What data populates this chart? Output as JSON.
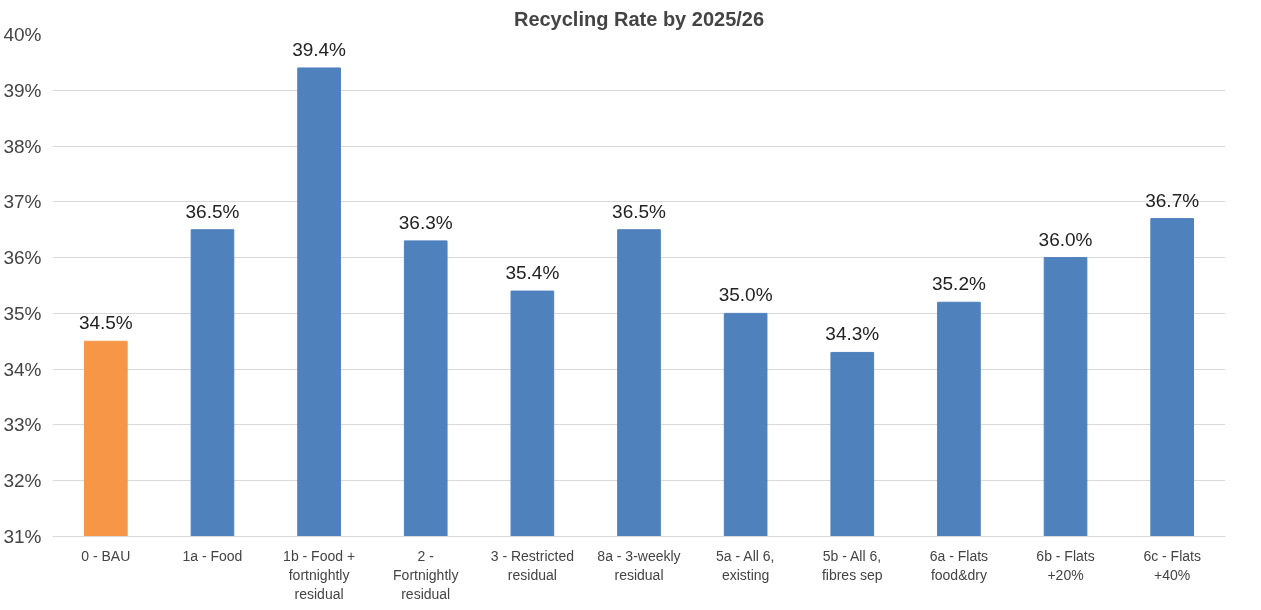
{
  "chart_data": {
    "type": "bar",
    "title": "Recycling Rate by 2025/26",
    "categories": [
      "0 - BAU",
      "1a - Food",
      "1b - Food + fortnightly residual",
      "2 - Fortnightly residual",
      "3 - Restricted residual",
      "8a - 3-weekly residual",
      "5a - All 6, existing",
      "5b - All 6, fibres sep",
      "6a - Flats food&dry",
      "6b - Flats +20%",
      "6c - Flats +40%"
    ],
    "values": [
      34.5,
      36.5,
      39.4,
      36.3,
      35.4,
      36.5,
      35.0,
      34.3,
      35.2,
      36.0,
      36.7
    ],
    "colors": [
      "#f79646",
      "#4f81bd",
      "#4f81bd",
      "#4f81bd",
      "#4f81bd",
      "#4f81bd",
      "#4f81bd",
      "#4f81bd",
      "#4f81bd",
      "#4f81bd",
      "#4f81bd"
    ],
    "ylim": [
      31,
      40
    ],
    "yticks": [
      {
        "value": 31,
        "label": "31%"
      },
      {
        "value": 32,
        "label": "32%"
      },
      {
        "value": 33,
        "label": "33%"
      },
      {
        "value": 34,
        "label": "34%"
      },
      {
        "value": 35,
        "label": "35%"
      },
      {
        "value": 36,
        "label": "36%"
      },
      {
        "value": 37,
        "label": "37%"
      },
      {
        "value": 38,
        "label": "38%"
      },
      {
        "value": 39,
        "label": "39%"
      },
      {
        "value": 40,
        "label": "40%"
      }
    ],
    "value_labels": [
      "34.5%",
      "36.5%",
      "39.4%",
      "36.3%",
      "35.4%",
      "36.5%",
      "35.0%",
      "34.3%",
      "35.2%",
      "36.0%",
      "36.7%"
    ],
    "grid": "y"
  }
}
